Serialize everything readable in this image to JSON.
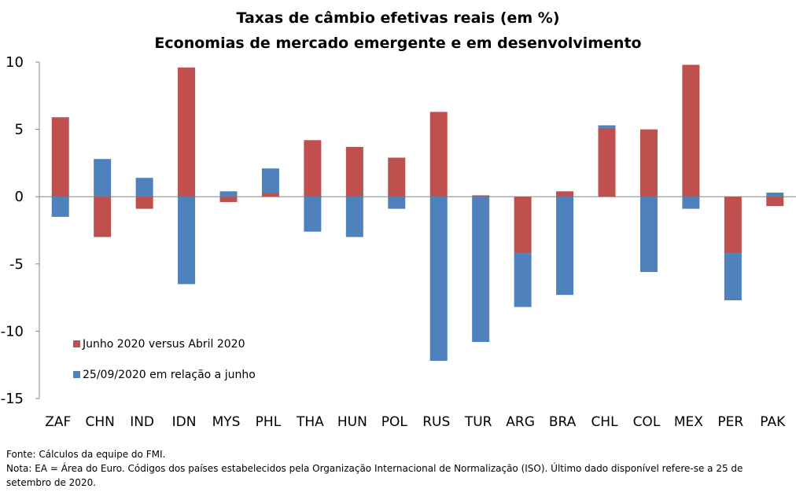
{
  "chart_data": {
    "type": "bar",
    "stacked": true,
    "title": "Taxas de câmbio efetivas reais (em %)",
    "subtitle": "Economias de mercado emergente e em desenvolvimento",
    "categories": [
      "ZAF",
      "CHN",
      "IND",
      "IDN",
      "MYS",
      "PHL",
      "THA",
      "HUN",
      "POL",
      "RUS",
      "TUR",
      "ARG",
      "BRA",
      "CHL",
      "COL",
      "MEX",
      "PER",
      "PAK"
    ],
    "series": [
      {
        "name": "Junho 2020 versus Abril 2020",
        "color": "#C0504D",
        "values": [
          5.9,
          -3.0,
          -0.9,
          9.6,
          -0.4,
          0.3,
          4.2,
          3.7,
          2.9,
          6.3,
          0.1,
          -4.2,
          0.4,
          5.1,
          5.0,
          9.8,
          -4.2,
          -0.7
        ]
      },
      {
        "name": "25/09/2020 em relação a junho",
        "color": "#4F81BD",
        "values": [
          -1.5,
          2.8,
          1.4,
          -6.5,
          0.4,
          1.8,
          -2.6,
          -3.0,
          -0.9,
          -12.2,
          -10.8,
          -4.0,
          -7.3,
          0.2,
          -5.6,
          -0.9,
          -3.5,
          0.3
        ]
      }
    ],
    "ylim": [
      -15,
      10
    ],
    "yticks": [
      10,
      5,
      0,
      -5,
      -10,
      -15
    ],
    "grid": false,
    "legend": "bottom-left"
  },
  "notes": {
    "source": "Fonte: Cálculos da equipe do FMI.",
    "note_line1": "Nota: EA = Área do Euro. Códigos dos países estabelecidos pela Organização Internacional de Normalização (ISO). Último dado disponível refere-se a 25 de",
    "note_line2": "setembro de 2020."
  }
}
